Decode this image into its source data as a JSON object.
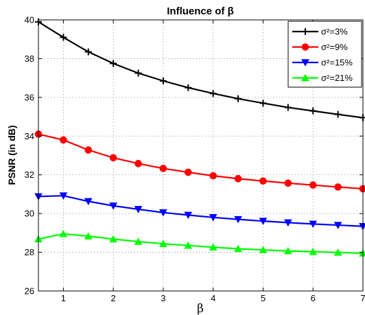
{
  "chart_data": {
    "type": "line",
    "title": "Influence of β",
    "xlabel": "β",
    "ylabel": "PSNR (in dB)",
    "xlim": [
      0.5,
      7
    ],
    "ylim": [
      26,
      40
    ],
    "xticks": [
      1,
      2,
      3,
      4,
      5,
      6,
      7
    ],
    "yticks": [
      26,
      28,
      30,
      32,
      34,
      36,
      38,
      40
    ],
    "grid": true,
    "legend_position": "top-right",
    "x": [
      0.5,
      1,
      1.5,
      2,
      2.5,
      3,
      3.5,
      4,
      4.5,
      5,
      5.5,
      6,
      6.5,
      7
    ],
    "series": [
      {
        "name": "σ²=3%",
        "color": "#000000",
        "marker": "plus",
        "values": [
          39.9,
          39.1,
          38.35,
          37.75,
          37.25,
          36.85,
          36.5,
          36.2,
          35.93,
          35.7,
          35.48,
          35.3,
          35.12,
          34.95
        ]
      },
      {
        "name": "σ²=9%",
        "color": "#ff0000",
        "marker": "circle",
        "values": [
          34.1,
          33.8,
          33.28,
          32.88,
          32.58,
          32.33,
          32.13,
          31.95,
          31.8,
          31.68,
          31.57,
          31.47,
          31.37,
          31.28
        ]
      },
      {
        "name": "σ²=15%",
        "color": "#0000ff",
        "marker": "triangle-down",
        "values": [
          30.88,
          30.92,
          30.63,
          30.4,
          30.22,
          30.05,
          29.92,
          29.8,
          29.7,
          29.61,
          29.53,
          29.46,
          29.4,
          29.34
        ]
      },
      {
        "name": "σ²=21%",
        "color": "#00ff00",
        "marker": "triangle-up",
        "values": [
          28.68,
          28.95,
          28.83,
          28.68,
          28.55,
          28.44,
          28.35,
          28.26,
          28.18,
          28.12,
          28.07,
          28.03,
          27.99,
          27.95
        ]
      }
    ]
  }
}
